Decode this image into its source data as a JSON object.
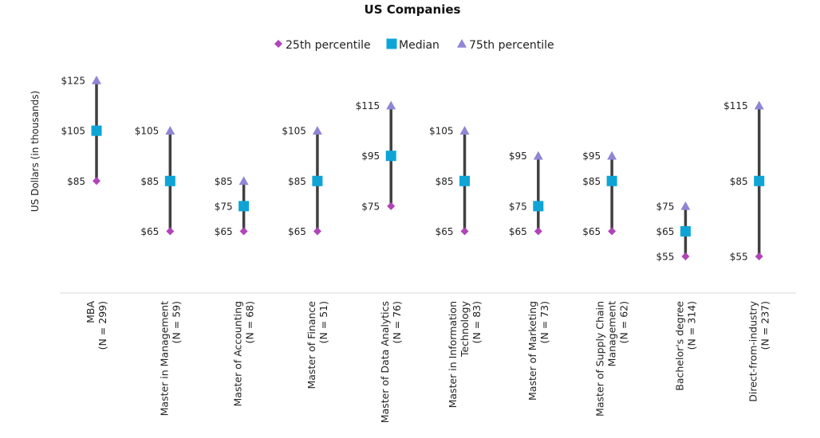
{
  "chart_data": {
    "type": "scatter",
    "title": "US Companies",
    "ylabel": "US Dollars (in thousands)",
    "xlabel": "",
    "ylim": [
      45,
      130
    ],
    "grid": false,
    "legend_placement": "top-center",
    "value_prefix": "$",
    "categories": [
      "MBA\n(N = 299)",
      "Master in Management\n(N = 59)",
      "Master of Accounting\n(N = 68)",
      "Master of Finance\n(N = 51)",
      "Master of Data Analytics\n(N = 76)",
      "Master in Information\nTechnology\n(N = 83)",
      "Master of Marketing\n(N = 73)",
      "Master of Supply Chain\nManagement\n(N = 62)",
      "Bachelor's degree\n(N = 314)",
      "Direct-from-industry\n(N = 237)"
    ],
    "series": [
      {
        "name": "25th percentile",
        "marker": "diamond",
        "color": "#b044b8",
        "values": [
          85,
          65,
          65,
          65,
          75,
          65,
          65,
          65,
          55,
          55
        ]
      },
      {
        "name": "Median",
        "marker": "square",
        "color": "#0ea5d6",
        "values": [
          105,
          85,
          75,
          85,
          95,
          85,
          75,
          85,
          65,
          85
        ]
      },
      {
        "name": "75th percentile",
        "marker": "triangle",
        "color": "#8f86d6",
        "values": [
          125,
          105,
          85,
          105,
          115,
          105,
          95,
          95,
          75,
          115
        ]
      }
    ],
    "range_line_color": "#404040",
    "axis_color": "#d9d9d9"
  }
}
